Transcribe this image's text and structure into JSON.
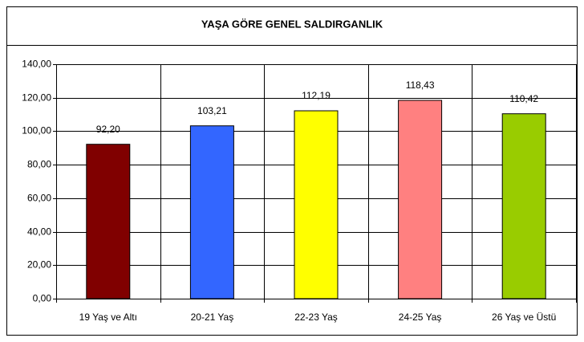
{
  "chart_data": {
    "type": "bar",
    "title": "YAŞA GÖRE GENEL SALDIRGANLIK",
    "categories": [
      "19 Yaş ve Altı",
      "20-21 Yaş",
      "22-23 Yaş",
      "24-25 Yaş",
      "26 Yaş ve Üstü"
    ],
    "values": [
      92.2,
      103.21,
      112.19,
      118.43,
      110.42
    ],
    "value_labels": [
      "92,20",
      "103,21",
      "112,19",
      "118,43",
      "110,42"
    ],
    "colors": [
      "#800000",
      "#3366ff",
      "#ffff00",
      "#ff8080",
      "#99cc00"
    ],
    "ylim": [
      0,
      140
    ],
    "yticks": [
      {
        "value": 0,
        "label": "0,00"
      },
      {
        "value": 20,
        "label": "20,00"
      },
      {
        "value": 40,
        "label": "40,00"
      },
      {
        "value": 60,
        "label": "60,00"
      },
      {
        "value": 80,
        "label": "80,00"
      },
      {
        "value": 100,
        "label": "100,00"
      },
      {
        "value": 120,
        "label": "120,00"
      },
      {
        "value": 140,
        "label": "140,00"
      }
    ],
    "grid": true
  }
}
